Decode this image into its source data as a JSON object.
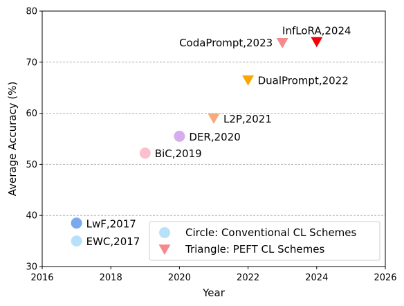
{
  "chart_data": {
    "type": "scatter",
    "xlabel": "Year",
    "ylabel": "Average Accuracy (%)",
    "xlim": [
      2016,
      2026
    ],
    "ylim": [
      30,
      80
    ],
    "xticks": [
      2016,
      2018,
      2020,
      2022,
      2024,
      2026
    ],
    "yticks": [
      30,
      40,
      50,
      60,
      70,
      80
    ],
    "grid": "horizontal dashed",
    "points": [
      {
        "label": "LwF,2017",
        "x": 2017,
        "y": 38.5,
        "marker": "circle",
        "color": "#7aaaeb",
        "label_pos": "right"
      },
      {
        "label": "EWC,2017",
        "x": 2017,
        "y": 35.0,
        "marker": "circle",
        "color": "#b7e1fb",
        "label_pos": "right"
      },
      {
        "label": "BiC,2019",
        "x": 2019,
        "y": 52.2,
        "marker": "circle",
        "color": "#fcbfcc",
        "label_pos": "right"
      },
      {
        "label": "DER,2020",
        "x": 2020,
        "y": 55.5,
        "marker": "circle",
        "color": "#d7acef",
        "label_pos": "right"
      },
      {
        "label": "L2P,2021",
        "x": 2021,
        "y": 59.0,
        "marker": "triangle",
        "color": "#f6ac7a",
        "label_pos": "right"
      },
      {
        "label": "DualPrompt,2022",
        "x": 2022,
        "y": 66.5,
        "marker": "triangle",
        "color": "#fba603",
        "label_pos": "right"
      },
      {
        "label": "CodaPrompt,2023",
        "x": 2023,
        "y": 73.8,
        "marker": "triangle",
        "color": "#f48a8e",
        "label_pos": "left"
      },
      {
        "label": "InfLoRA,2024",
        "x": 2024,
        "y": 74.0,
        "marker": "triangle",
        "color": "#f50105",
        "label_pos": "above"
      }
    ],
    "legend": {
      "placement": "bottom-right",
      "entries": [
        {
          "label": "Circle: Conventional CL Schemes",
          "marker": "circle",
          "color": "#b7e1fb"
        },
        {
          "label": "Triangle: PEFT CL Schemes",
          "marker": "triangle",
          "color": "#f48a8e"
        }
      ]
    }
  }
}
